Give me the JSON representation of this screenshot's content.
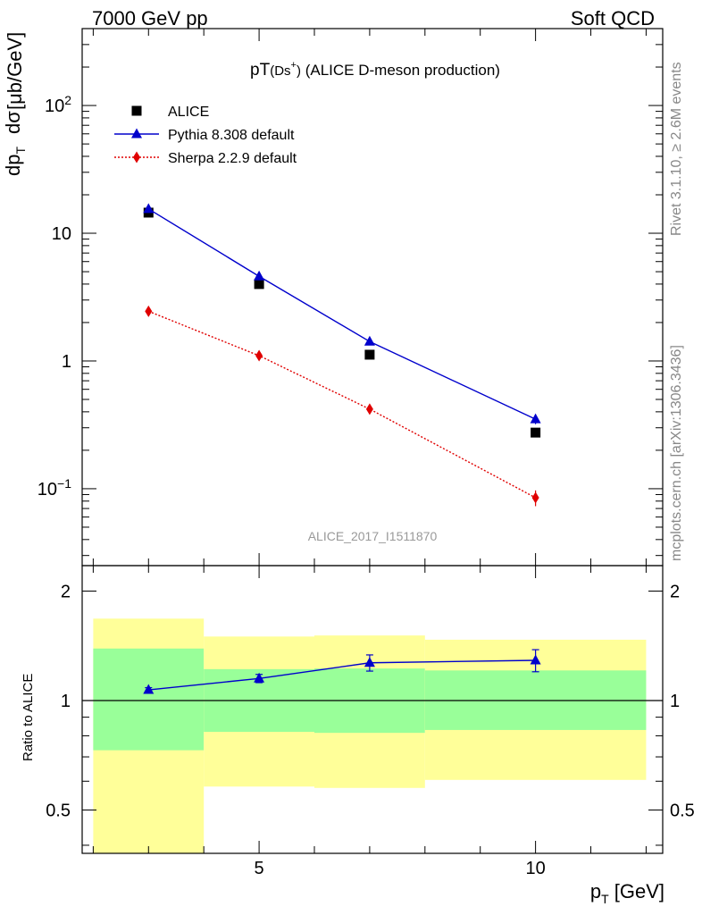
{
  "header": {
    "left": "7000 GeV pp",
    "right": "Soft QCD"
  },
  "side_text": {
    "rivet": "Rivet 3.1.10, ≥ 2.6M events",
    "source": "mcplots.cern.ch [arXiv:1306.3436]"
  },
  "colors": {
    "alice": "#000000",
    "pythia": "#0000cc",
    "sherpa": "#e00000",
    "band_outer": "#ffff99",
    "band_inner": "#99ff99"
  },
  "chart_data": [
    {
      "type": "scatter",
      "title_main": "pT",
      "title_sub": "(Ds",
      "title_sup": "+",
      "title_close": ")",
      "title_rest": " (ALICE D-meson production)",
      "analysis_label": "ALICE_2017_I1511870",
      "xlabel": "p",
      "xlabel_sub": "T",
      "xlabel_unit": " [GeV]",
      "ylabel_num": "dσ",
      "ylabel_den": "dp",
      "ylabel_den_sub": "T",
      "ylabel_unit": "[μb/GeV]",
      "yscale": "log",
      "xlim": [
        1.8,
        12.3
      ],
      "ylim": [
        0.025,
        400
      ],
      "ytick_labels": [
        "10−1",
        "1",
        "10",
        "10²"
      ],
      "ytick_values": [
        0.1,
        1,
        10,
        100
      ],
      "legend_position": "top-left",
      "series": [
        {
          "name": "ALICE",
          "marker": "square",
          "x": [
            3,
            5,
            7,
            10
          ],
          "y": [
            14.5,
            4.0,
            1.12,
            0.275
          ]
        },
        {
          "name": "Pythia 8.308 default",
          "marker": "triangle",
          "line": "solid",
          "x": [
            3,
            5,
            7,
            10
          ],
          "y": [
            15.5,
            4.6,
            1.42,
            0.35
          ],
          "yerr": [
            0.4,
            0.12,
            0.05,
            0.03
          ]
        },
        {
          "name": "Sherpa 2.2.9 default",
          "marker": "diamond",
          "line": "dotted",
          "x": [
            3,
            5,
            7,
            10
          ],
          "y": [
            2.45,
            1.1,
            0.42,
            0.085
          ],
          "yerr": [
            0.08,
            0.05,
            0.035,
            0.012
          ]
        }
      ]
    },
    {
      "type": "scatter",
      "ylabel": "Ratio to ALICE",
      "yscale": "log",
      "xlim": [
        1.8,
        12.3
      ],
      "ylim": [
        0.38,
        2.35
      ],
      "xtick_labels": [
        "5",
        "10"
      ],
      "xtick_values": [
        5,
        10
      ],
      "ytick_labels": [
        "0.5",
        "1",
        "2"
      ],
      "ytick_values": [
        0.5,
        1,
        2
      ],
      "reference_line": 1,
      "bands": [
        {
          "x0": 2,
          "x1": 4,
          "inner": [
            0.73,
            1.39
          ],
          "outer": [
            0.38,
            1.68
          ]
        },
        {
          "x0": 4,
          "x1": 6,
          "inner": [
            0.82,
            1.22
          ],
          "outer": [
            0.58,
            1.5
          ]
        },
        {
          "x0": 6,
          "x1": 8,
          "inner": [
            0.815,
            1.225
          ],
          "outer": [
            0.575,
            1.51
          ]
        },
        {
          "x0": 8,
          "x1": 12,
          "inner": [
            0.83,
            1.21
          ],
          "outer": [
            0.605,
            1.47
          ]
        }
      ],
      "series": [
        {
          "name": "Pythia 8.308 default",
          "marker": "triangle",
          "line": "solid",
          "x": [
            3,
            5,
            7,
            10
          ],
          "y": [
            1.07,
            1.15,
            1.27,
            1.29
          ],
          "yerr": [
            0.015,
            0.03,
            0.065,
            0.09
          ]
        }
      ]
    }
  ]
}
